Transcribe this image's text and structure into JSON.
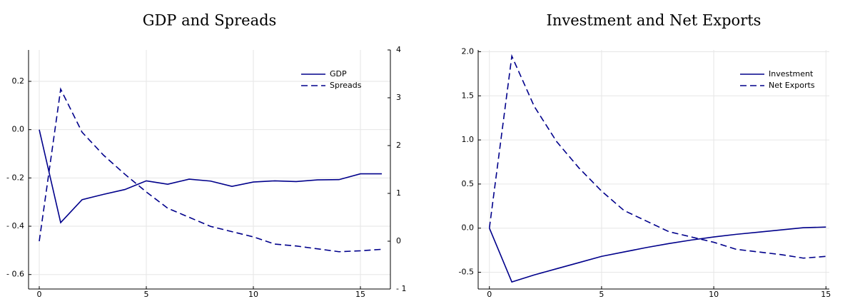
{
  "chart_data": [
    {
      "type": "line",
      "title": "GDP and Spreads",
      "x": [
        0,
        1,
        2,
        3,
        4,
        5,
        6,
        7,
        8,
        9,
        10,
        11,
        12,
        13,
        14,
        15,
        16
      ],
      "xlim": [
        -0.5,
        16.4
      ],
      "xticks": [
        0,
        5,
        10,
        15
      ],
      "ylim": [
        -0.66,
        0.33
      ],
      "yticks": [
        {
          "value": -0.6,
          "label": "- 0.6"
        },
        {
          "value": -0.4,
          "label": "- 0.4"
        },
        {
          "value": -0.2,
          "label": "- 0.2"
        },
        {
          "value": 0,
          "label": "0.0"
        },
        0.2
      ],
      "y2lim": [
        -1,
        4
      ],
      "y2ticks": [
        {
          "value": -1,
          "label": "- 1"
        },
        0,
        1,
        2,
        3,
        4
      ],
      "grid": true,
      "legend": "top-right",
      "series": [
        {
          "name": "GDP",
          "color": "#00008b",
          "line_style": "solid",
          "values": [
            0.0,
            -0.385,
            -0.29,
            -0.268,
            -0.248,
            -0.212,
            -0.226,
            -0.205,
            -0.213,
            -0.235,
            -0.217,
            -0.212,
            -0.215,
            -0.208,
            -0.207,
            -0.183,
            -0.183
          ]
        },
        {
          "name": "Spreads",
          "color": "#00008b",
          "line_style": "dashed",
          "axis": "y2",
          "values": [
            0,
            3.18,
            2.28,
            1.8,
            1.4,
            1.03,
            0.69,
            0.5,
            0.31,
            0.2,
            0.09,
            -0.06,
            -0.1,
            -0.16,
            -0.22,
            -0.2,
            -0.17
          ]
        }
      ]
    },
    {
      "type": "line",
      "title": "Investment and Net Exports",
      "x": [
        0,
        1,
        2,
        3,
        4,
        5,
        6,
        7,
        8,
        9,
        10,
        11,
        12,
        13,
        14,
        15
      ],
      "xlim": [
        -0.5,
        15.15
      ],
      "xticks": [
        0,
        5,
        10,
        15
      ],
      "ylim": [
        -0.69,
        2.02
      ],
      "yticks": [
        {
          "value": -0.5,
          "label": "-0.5"
        },
        {
          "value": 0,
          "label": "0.0"
        },
        0.5,
        {
          "value": 1,
          "label": "1.0"
        },
        1.5,
        {
          "value": 2,
          "label": "2.0"
        }
      ],
      "grid": true,
      "legend": "top-right",
      "series": [
        {
          "name": "Investment",
          "color": "#00008b",
          "line_style": "solid",
          "values": [
            0,
            -0.61,
            -0.53,
            -0.46,
            -0.39,
            -0.32,
            -0.27,
            -0.22,
            -0.175,
            -0.135,
            -0.1,
            -0.07,
            -0.045,
            -0.02,
            0.005,
            0.012
          ]
        },
        {
          "name": "Net Exports",
          "color": "#00008b",
          "line_style": "dashed",
          "values": [
            0,
            1.95,
            1.38,
            0.98,
            0.68,
            0.42,
            0.2,
            0.08,
            -0.04,
            -0.1,
            -0.16,
            -0.24,
            -0.27,
            -0.3,
            -0.34,
            -0.32
          ]
        }
      ]
    }
  ]
}
